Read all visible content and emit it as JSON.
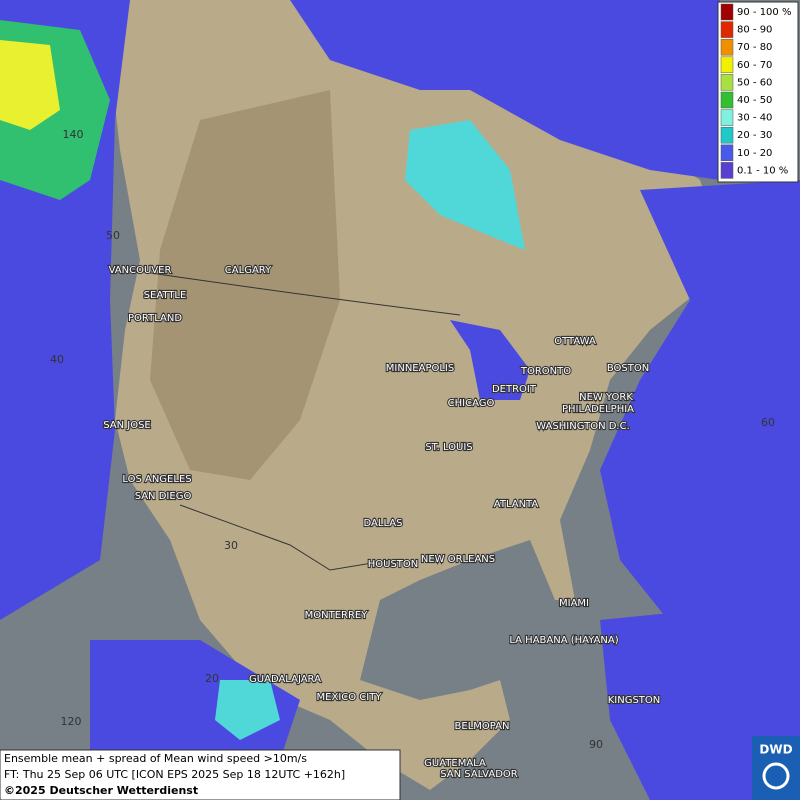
{
  "legend": {
    "items": [
      {
        "label": "90 - 100 %",
        "color": "#a00000"
      },
      {
        "label": "80 - 90",
        "color": "#e02800"
      },
      {
        "label": "70 - 80",
        "color": "#f09000"
      },
      {
        "label": "60 - 70",
        "color": "#f0f000"
      },
      {
        "label": "50 - 60",
        "color": "#a8e040"
      },
      {
        "label": "40 - 50",
        "color": "#30c030"
      },
      {
        "label": "30 - 40",
        "color": "#80f0e0"
      },
      {
        "label": "20 - 30",
        "color": "#20c8c8"
      },
      {
        "label": "10 - 20",
        "color": "#4a5ae8"
      },
      {
        "label": "0.1 - 10 %",
        "color": "#5a40d0"
      }
    ]
  },
  "cities": [
    "VANCOUVER",
    "CALGARY",
    "SEATTLE",
    "PORTLAND",
    "MINNEAPOLIS",
    "OTTAWA",
    "TORONTO",
    "BOSTON",
    "DETROIT",
    "CHICAGO",
    "NEW YORK",
    "PHILADELPHIA",
    "WASHINGTON D.C.",
    "SAN JOSE",
    "ST. LOUIS",
    "LOS ANGELES",
    "SAN DIEGO",
    "ATLANTA",
    "DALLAS",
    "HOUSTON",
    "NEW ORLEANS",
    "MIAMI",
    "MONTERREY",
    "LA HABANA (HAYANA)",
    "GUADALAJARA",
    "MEXICO CITY",
    "KINGSTON",
    "BELMOPAN",
    "GUATEMALA",
    "SAN SALVADOR"
  ],
  "grid_labels": [
    "140",
    "50",
    "40",
    "60",
    "30",
    "20",
    "120",
    "90"
  ],
  "footer": {
    "lines": [
      "Ensemble mean + spread of Mean wind speed >10m/s",
      "FT: Thu 25 Sep 06 UTC [ICON EPS 2025 Sep 18 12UTC +162h]",
      "©2025 Deutscher Wetterdienst"
    ]
  },
  "logo": "DWD"
}
